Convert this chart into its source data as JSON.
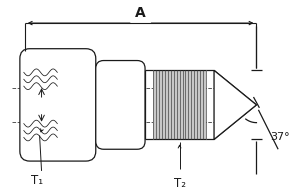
{
  "bg_color": "#ffffff",
  "line_color": "#1a1a1a",
  "gray_fill": "#c8c8c8",
  "label_A": "A",
  "label_T1": "T₁",
  "label_T2": "T₂",
  "label_angle": "37°",
  "fig_width": 2.98,
  "fig_height": 1.95,
  "dpi": 100
}
